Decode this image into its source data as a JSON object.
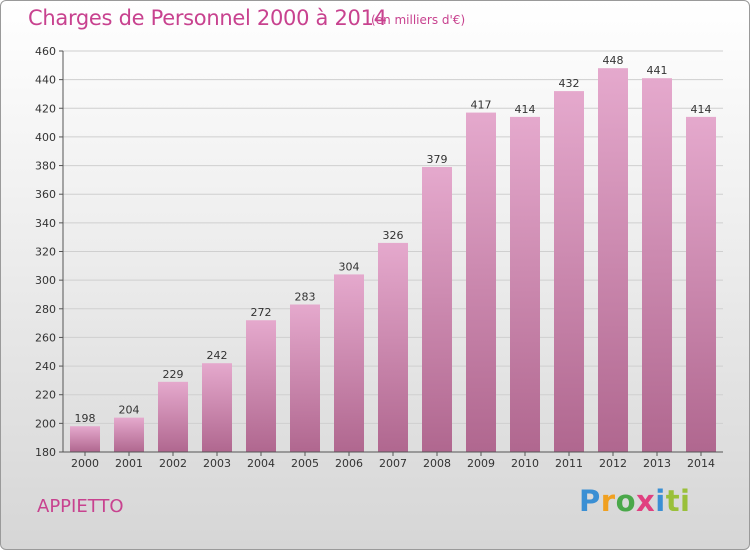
{
  "header": {
    "title": "Charges de Personnel 2000 à 2014",
    "subtitle": "(en milliers d'€)"
  },
  "footer": {
    "commune": "APPIETTO",
    "logo": "Proxiti"
  },
  "colors": {
    "accent": "#c8428f",
    "bar_top": "#e5a9cd",
    "bar_bottom": "#b0678f"
  },
  "chart_data": {
    "type": "bar",
    "categories": [
      "2000",
      "2001",
      "2002",
      "2003",
      "2004",
      "2005",
      "2006",
      "2007",
      "2008",
      "2009",
      "2010",
      "2011",
      "2012",
      "2013",
      "2014"
    ],
    "values": [
      198,
      204,
      229,
      242,
      272,
      283,
      304,
      326,
      379,
      417,
      414,
      432,
      448,
      441,
      414
    ],
    "ylim": [
      180,
      460
    ],
    "yticks": [
      180,
      200,
      220,
      240,
      260,
      280,
      300,
      320,
      340,
      360,
      380,
      400,
      420,
      440,
      460
    ],
    "grid": true
  }
}
